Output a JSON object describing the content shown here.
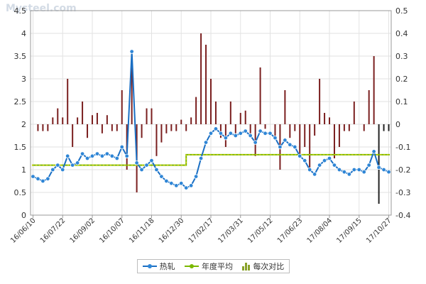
{
  "watermark": "Mysteel.com",
  "legend": {
    "price_label": "热轧",
    "avg_label": "年度平均",
    "change_label": "每次对比"
  },
  "colors": {
    "price": "#1a6fc4",
    "price_point": "#2f86d6",
    "average": "#7ab800",
    "average_dash": "#f5d600",
    "bar": "#7a1f1f",
    "bar_alt": "#222222",
    "grid": "#e2e2e2",
    "axis": "#999999"
  },
  "chart_data": {
    "type": "line",
    "x_tick_labels": [
      "16/06/10",
      "16/07/22",
      "16/09/02",
      "16/10/07",
      "16/11/18",
      "16/12/30",
      "17/02/17",
      "17/03/31",
      "17/05/12",
      "17/06/23",
      "17/08/04",
      "17/09/15",
      "17/10/27"
    ],
    "x_tick_positions": [
      0,
      6,
      12,
      18,
      24,
      30,
      36,
      42,
      48,
      54,
      60,
      66,
      72
    ],
    "y_left": {
      "min": 0,
      "max": 4.5,
      "step": 0.5,
      "ticks": [
        "0",
        "0.5",
        "1",
        "1.5",
        "2",
        "2.5",
        "3",
        "3.5",
        "4",
        "4.5"
      ]
    },
    "y_right": {
      "min": -0.4,
      "max": 0.5,
      "step": 0.1,
      "ticks": [
        "-0.4",
        "-0.3",
        "-0.2",
        "-0.1",
        "0",
        "0.1",
        "0.2",
        "0.3",
        "0.4",
        "0.5"
      ]
    },
    "grid": true,
    "legend_position": "bottom",
    "series": [
      {
        "name": "热轧",
        "axis": "left",
        "style": "line-with-markers",
        "values": [
          0.85,
          0.8,
          0.75,
          0.8,
          1.0,
          1.1,
          1.0,
          1.3,
          1.1,
          1.15,
          1.35,
          1.25,
          1.3,
          1.35,
          1.3,
          1.35,
          1.3,
          1.25,
          1.5,
          1.3,
          3.6,
          1.15,
          1.0,
          1.1,
          1.2,
          1.0,
          0.85,
          0.75,
          0.7,
          0.65,
          0.7,
          0.6,
          0.65,
          0.85,
          1.25,
          1.6,
          1.8,
          1.9,
          1.8,
          1.7,
          1.8,
          1.75,
          1.8,
          1.85,
          1.75,
          1.6,
          1.85,
          1.8,
          1.8,
          1.7,
          1.5,
          1.65,
          1.55,
          1.5,
          1.3,
          1.2,
          1.0,
          0.9,
          1.1,
          1.2,
          1.25,
          1.1,
          1.0,
          0.95,
          0.9,
          1.0,
          1.0,
          0.95,
          1.1,
          1.4,
          1.05,
          1.0,
          0.95
        ]
      },
      {
        "name": "年度平均",
        "axis": "left",
        "style": "step-line",
        "values": [
          1.1,
          1.1,
          1.1,
          1.1,
          1.1,
          1.1,
          1.1,
          1.1,
          1.1,
          1.1,
          1.1,
          1.1,
          1.1,
          1.1,
          1.1,
          1.1,
          1.1,
          1.1,
          1.1,
          1.1,
          1.1,
          1.1,
          1.1,
          1.1,
          1.1,
          1.1,
          1.1,
          1.1,
          1.1,
          1.1,
          1.1,
          1.33,
          1.33,
          1.33,
          1.33,
          1.33,
          1.33,
          1.33,
          1.33,
          1.33,
          1.33,
          1.33,
          1.33,
          1.33,
          1.33,
          1.33,
          1.33,
          1.33,
          1.33,
          1.33,
          1.33,
          1.33,
          1.33,
          1.33,
          1.33,
          1.33,
          1.33,
          1.33,
          1.33,
          1.33,
          1.33,
          1.33,
          1.33,
          1.33,
          1.33,
          1.33,
          1.33,
          1.33,
          1.33,
          1.33,
          1.33,
          1.33,
          1.33
        ]
      },
      {
        "name": "每次对比",
        "axis": "right",
        "style": "bar",
        "values": [
          0,
          -0.03,
          -0.03,
          -0.03,
          0.03,
          0.07,
          0.03,
          0.2,
          -0.1,
          0.03,
          0.1,
          -0.06,
          0.04,
          0.05,
          -0.04,
          0.04,
          -0.03,
          -0.03,
          0.15,
          -0.2,
          0.3,
          -0.3,
          -0.06,
          0.07,
          0.07,
          -0.14,
          -0.08,
          -0.04,
          -0.03,
          -0.03,
          0.02,
          -0.03,
          0.03,
          0.12,
          0.4,
          0.35,
          0.2,
          0.1,
          -0.06,
          -0.1,
          0.1,
          -0.04,
          0.05,
          0.06,
          -0.04,
          -0.14,
          0.25,
          -0.02,
          0,
          -0.06,
          -0.2,
          0.15,
          -0.06,
          -0.03,
          -0.14,
          -0.1,
          -0.2,
          -0.05,
          0.2,
          0.05,
          0.03,
          -0.15,
          -0.1,
          -0.03,
          -0.03,
          0.1,
          0,
          -0.03,
          0.15,
          0.3,
          -0.35,
          -0.03,
          -0.03
        ]
      }
    ]
  }
}
